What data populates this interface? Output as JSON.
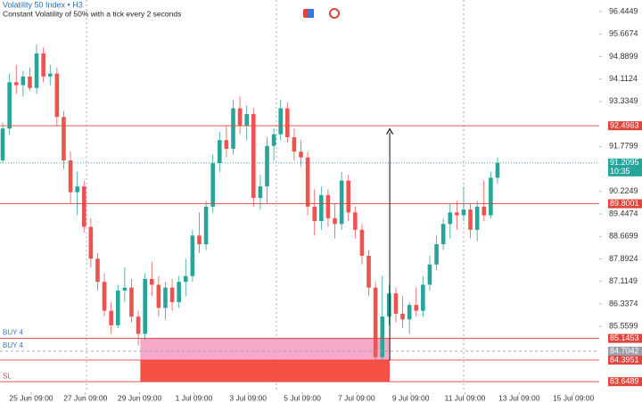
{
  "chart_data": {
    "type": "candlestick",
    "title": "Volatility 50 Index • H3",
    "subtitle": "Constant Volatility of 50% with a tick every 2 seconds",
    "x": [
      0,
      1,
      2,
      3,
      4,
      5,
      6,
      7,
      8,
      9,
      10,
      11,
      12,
      13,
      14,
      15,
      16,
      17,
      18,
      19,
      20,
      21,
      22,
      23,
      24,
      25,
      26,
      27,
      28,
      29,
      30,
      31,
      32,
      33,
      34,
      35,
      36,
      37,
      38,
      39,
      40,
      41,
      42,
      43,
      44,
      45,
      46,
      47,
      48,
      49,
      50,
      51,
      52,
      53,
      54,
      55,
      56,
      57,
      58,
      59,
      60,
      61,
      62,
      63,
      64,
      65,
      66,
      67,
      68,
      69,
      70,
      71,
      72,
      73
    ],
    "open": [
      91.3,
      92.4,
      94.0,
      93.9,
      94.2,
      93.8,
      95.0,
      94.2,
      94.3,
      92.8,
      91.3,
      90.2,
      90.4,
      89.0,
      87.9,
      87.1,
      86.1,
      85.6,
      86.8,
      86.9,
      85.9,
      85.3,
      87.2,
      87.0,
      86.2,
      86.9,
      86.4,
      87.1,
      87.3,
      88.7,
      88.4,
      89.7,
      91.2,
      92.0,
      91.7,
      93.1,
      92.5,
      92.9,
      90.0,
      90.4,
      91.8,
      92.2,
      93.1,
      92.1,
      91.6,
      91.4,
      89.7,
      89.2,
      90.1,
      89.3,
      89.1,
      90.6,
      89.5,
      88.9,
      88.0,
      86.9,
      84.5,
      85.9,
      86.7,
      86.0,
      85.8,
      86.3,
      86.1,
      87.0,
      87.7,
      88.4,
      89.1,
      89.5,
      89.4,
      89.6,
      88.9,
      89.7,
      89.4,
      90.7
    ],
    "high": [
      92.6,
      94.3,
      94.6,
      94.4,
      94.5,
      95.3,
      95.2,
      94.6,
      94.5,
      93.0,
      91.6,
      90.9,
      90.6,
      89.3,
      88.1,
      87.4,
      86.4,
      87.0,
      87.6,
      87.2,
      86.1,
      87.4,
      87.8,
      87.3,
      87.1,
      87.2,
      87.3,
      87.9,
      88.9,
      89.5,
      89.9,
      91.5,
      92.3,
      92.5,
      93.4,
      93.5,
      93.2,
      93.1,
      90.8,
      92.1,
      92.4,
      93.4,
      93.3,
      92.4,
      92.0,
      91.6,
      90.3,
      90.4,
      90.3,
      89.8,
      90.9,
      90.8,
      89.7,
      89.1,
      88.2,
      87.1,
      87.3,
      87.0,
      86.9,
      86.6,
      86.4,
      86.9,
      87.3,
      88.0,
      88.7,
      89.3,
      89.8,
      89.9,
      90.4,
      89.8,
      89.9,
      90.6,
      90.9,
      91.4
    ],
    "low": [
      91.2,
      92.2,
      93.6,
      93.5,
      93.7,
      93.6,
      94.0,
      93.9,
      92.5,
      91.0,
      89.8,
      89.4,
      88.8,
      87.6,
      86.8,
      85.9,
      85.3,
      85.5,
      86.4,
      85.7,
      84.9,
      85.1,
      86.6,
      85.9,
      85.8,
      86.1,
      86.2,
      86.6,
      87.1,
      88.1,
      88.2,
      89.5,
      90.9,
      91.4,
      91.5,
      92.2,
      92.0,
      89.7,
      89.6,
      89.8,
      91.3,
      92.0,
      91.9,
      91.3,
      91.1,
      89.4,
      88.7,
      88.9,
      89.0,
      88.6,
      88.9,
      89.2,
      88.6,
      87.7,
      86.6,
      84.2,
      84.4,
      85.6,
      85.7,
      85.5,
      85.3,
      85.9,
      85.9,
      86.8,
      87.5,
      88.2,
      88.6,
      88.9,
      89.2,
      88.6,
      88.5,
      89.2,
      89.3,
      90.5
    ],
    "close": [
      92.4,
      94.0,
      93.9,
      94.2,
      93.8,
      95.0,
      94.2,
      94.3,
      92.8,
      91.3,
      90.2,
      90.4,
      89.0,
      87.9,
      87.1,
      86.1,
      85.6,
      86.8,
      86.9,
      85.9,
      85.3,
      87.2,
      87.0,
      86.2,
      86.9,
      86.4,
      87.1,
      87.3,
      88.7,
      88.4,
      89.7,
      91.2,
      92.0,
      91.7,
      93.1,
      92.5,
      92.9,
      90.0,
      90.4,
      91.8,
      92.2,
      93.1,
      92.1,
      91.6,
      91.4,
      89.7,
      89.2,
      90.1,
      89.3,
      89.1,
      90.6,
      89.5,
      88.9,
      88.0,
      86.9,
      84.5,
      85.9,
      86.7,
      86.0,
      85.8,
      86.3,
      86.1,
      87.0,
      87.7,
      88.4,
      89.1,
      89.5,
      89.4,
      89.6,
      88.9,
      89.7,
      89.4,
      90.7,
      91.21
    ],
    "up_color": "#26a69a",
    "down_color": "#ef5350",
    "xlim": [
      -0.4,
      88.0
    ],
    "xticks": [
      {
        "value": 4.2,
        "label": "25 Jun 09:00"
      },
      {
        "value": 12.2,
        "label": "27 Jun 09:00"
      },
      {
        "value": 20.2,
        "label": "29 Jun 09:00"
      },
      {
        "value": 28.2,
        "label": "1 Jul 09:00"
      },
      {
        "value": 36.2,
        "label": "3 Jul 09:00"
      },
      {
        "value": 44.2,
        "label": "5 Jul 09:00"
      },
      {
        "value": 52.2,
        "label": "7 Jul 09:00"
      },
      {
        "value": 60.2,
        "label": "9 Jul 09:00"
      },
      {
        "value": 68.2,
        "label": "11 Jul 09:00"
      },
      {
        "value": 76.2,
        "label": "13 Jul 09:00"
      },
      {
        "value": 84.2,
        "label": "15 Jul 09:00"
      }
    ],
    "ylim": [
      83.285,
      96.844
    ],
    "yticks": [
      96.4449,
      95.6674,
      94.8899,
      94.1124,
      93.3349,
      91.7799,
      90.2249,
      89.4474,
      88.6699,
      87.8924,
      87.1149,
      86.3374,
      85.5599
    ],
    "levels": [
      {
        "value": 92.4963,
        "color": "#e0453c",
        "style": "solid"
      },
      {
        "value": 91.2095,
        "color": "#26a69a",
        "style": "dotted",
        "countdown": "10:35"
      },
      {
        "value": 89.8001,
        "color": "#e0453c",
        "style": "solid"
      },
      {
        "value": 85.1453,
        "color": "#e0453c",
        "style": "solid",
        "name": "BUY 4"
      },
      {
        "value": 84.7042,
        "color": "#9aa0a6",
        "style": "dashed",
        "name": "BUY 4"
      },
      {
        "value": 84.3951,
        "color": "#e0453c",
        "style": "solid"
      },
      {
        "value": 83.6489,
        "color": "#e0453c",
        "style": "solid",
        "name": "SL"
      }
    ],
    "zones": [
      {
        "x": [
          20.3,
          57.1
        ],
        "y": [
          84.3951,
          85.1453
        ],
        "color": "#f8a3c6"
      },
      {
        "x": [
          20.3,
          57.1
        ],
        "y": [
          83.6489,
          84.3951
        ],
        "color": "#f6483c"
      }
    ],
    "arrow": {
      "x": 57.1,
      "y": [
        84.3951,
        92.39
      ]
    }
  }
}
